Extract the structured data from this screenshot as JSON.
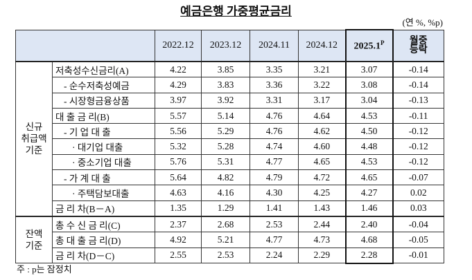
{
  "title": "예금은행 가중평균금리",
  "unit": "(연 %, %p)",
  "header": {
    "columns": [
      "2022.12",
      "2023.12",
      "2024.11",
      "2024.12",
      {
        "text": "2025.1",
        "sup": "P"
      }
    ],
    "change": "월중\n등락"
  },
  "groups": [
    "신규\n취급액\n기준",
    "잔액\n기준"
  ],
  "rows": [
    {
      "label": "저축성수신금리(A)",
      "values": [
        "4.22",
        "3.85",
        "3.35",
        "3.21",
        "3.07",
        "-0.14"
      ]
    },
    {
      "label": "- 순수저축성예금",
      "values": [
        "4.29",
        "3.83",
        "3.36",
        "3.22",
        "3.08",
        "-0.14"
      ]
    },
    {
      "label": "- 시장형금융상품",
      "values": [
        "3.97",
        "3.92",
        "3.31",
        "3.17",
        "3.04",
        "-0.13"
      ]
    },
    {
      "label": "대 출 금 리(B)",
      "values": [
        "5.57",
        "5.14",
        "4.76",
        "4.64",
        "4.53",
        "-0.11"
      ]
    },
    {
      "label": "- 기 업 대 출",
      "values": [
        "5.56",
        "5.29",
        "4.76",
        "4.62",
        "4.50",
        "-0.12"
      ]
    },
    {
      "label": "· 대기업 대출",
      "values": [
        "5.32",
        "5.28",
        "4.74",
        "4.60",
        "4.48",
        "-0.12"
      ]
    },
    {
      "label": "· 중소기업 대출",
      "values": [
        "5.76",
        "5.31",
        "4.77",
        "4.65",
        "4.53",
        "-0.12"
      ]
    },
    {
      "label": "- 가 계 대 출",
      "values": [
        "5.64",
        "4.82",
        "4.79",
        "4.72",
        "4.65",
        "-0.07"
      ]
    },
    {
      "label": "· 주택담보대출",
      "values": [
        "4.63",
        "4.16",
        "4.30",
        "4.25",
        "4.27",
        "0.02"
      ]
    },
    {
      "label": "금 리 차(B－A)",
      "values": [
        "1.35",
        "1.29",
        "1.41",
        "1.43",
        "1.46",
        "0.03"
      ]
    },
    {
      "label": "총 수 신 금 리(C)",
      "values": [
        "2.37",
        "2.68",
        "2.53",
        "2.44",
        "2.40",
        "-0.04"
      ]
    },
    {
      "label": "총 대 출 금 리(D)",
      "values": [
        "4.92",
        "5.21",
        "4.77",
        "4.73",
        "4.68",
        "-0.05"
      ]
    },
    {
      "label": "금 리 차(D－C)",
      "values": [
        "2.55",
        "2.53",
        "2.24",
        "2.29",
        "2.28",
        "-0.01"
      ]
    }
  ],
  "footnote": "주 : p는 잠정치"
}
